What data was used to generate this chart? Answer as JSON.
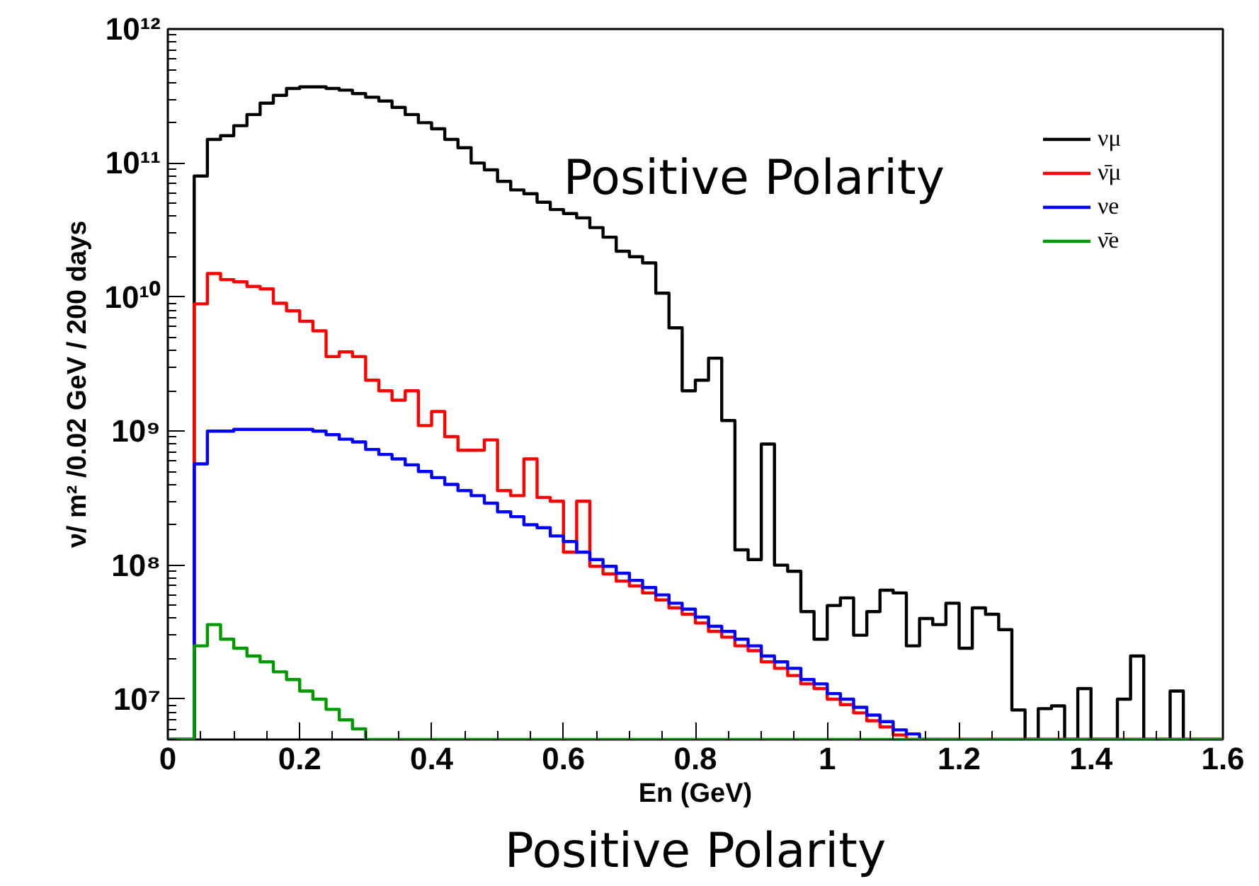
{
  "chart_data": {
    "type": "histogram",
    "xlabel": "En (GeV)",
    "ylabel": "ν/ m² /0.02 GeV / 200 days",
    "annotations": [
      "Positive Polarity",
      "Positive Polarity"
    ],
    "log": "y",
    "grid": false,
    "legend": "top right",
    "xlim": [
      0,
      1.6
    ],
    "xticks": [
      0,
      0.2,
      0.4,
      0.6,
      0.8,
      1,
      1.2,
      1.4,
      1.6
    ],
    "ylim": [
      5000000.0,
      1000000000000.0
    ],
    "yticks": [
      {
        "value": 10000000.0,
        "label": "10⁷"
      },
      {
        "value": 100000000.0,
        "label": "10⁸"
      },
      {
        "value": 1000000000.0,
        "label": "10⁹"
      },
      {
        "value": 10000000000.0,
        "label": "10¹⁰"
      },
      {
        "value": 100000000000.0,
        "label": "10¹¹"
      },
      {
        "value": 1000000000000.0,
        "label": "10¹²"
      }
    ],
    "bins": [
      0,
      0.02,
      0.04,
      0.06,
      0.08,
      0.1,
      0.12,
      0.14,
      0.16,
      0.18,
      0.2,
      0.22,
      0.24,
      0.26,
      0.28,
      0.3,
      0.32,
      0.34,
      0.36,
      0.38,
      0.4,
      0.42,
      0.44,
      0.46,
      0.48,
      0.5,
      0.52,
      0.54,
      0.56,
      0.58,
      0.6,
      0.62,
      0.64,
      0.66,
      0.68,
      0.7,
      0.72,
      0.74,
      0.76,
      0.78,
      0.8,
      0.82,
      0.84,
      0.86,
      0.88,
      0.9,
      0.92,
      0.94,
      0.96,
      0.98,
      1,
      1.02,
      1.04,
      1.06,
      1.08,
      1.1,
      1.12,
      1.14,
      1.16,
      1.18,
      1.2,
      1.22,
      1.24,
      1.26,
      1.28,
      1.3,
      1.32,
      1.34,
      1.36,
      1.38,
      1.4,
      1.42,
      1.44,
      1.46,
      1.48,
      1.5,
      1.52,
      1.54,
      1.56,
      1.58,
      1.6
    ],
    "series": [
      {
        "name": "νμ",
        "color": "#000000",
        "values": [
          null,
          null,
          80000000000.0,
          150000000000.0,
          160000000000.0,
          190000000000.0,
          230000000000.0,
          280000000000.0,
          320000000000.0,
          360000000000.0,
          370000000000.0,
          370000000000.0,
          360000000000.0,
          350000000000.0,
          330000000000.0,
          310000000000.0,
          290000000000.0,
          260000000000.0,
          230000000000.0,
          200000000000.0,
          180000000000.0,
          150000000000.0,
          130000000000.0,
          100000000000.0,
          89000000000.0,
          73000000000.0,
          63000000000.0,
          59000000000.0,
          51000000000.0,
          45000000000.0,
          42000000000.0,
          39000000000.0,
          33000000000.0,
          28000000000.0,
          22000000000.0,
          20000000000.0,
          18000000000.0,
          10700000000.0,
          5900000000.0,
          2000000000.0,
          2400000000.0,
          3500000000.0,
          1200000000.0,
          130000000.0,
          110000000.0,
          800000000.0,
          100000000.0,
          90000000.0,
          45000000.0,
          28000000.0,
          50000000.0,
          57000000.0,
          30000000.0,
          45000000.0,
          65000000.0,
          62000000.0,
          25000000.0,
          40000000.0,
          36000000.0,
          52000000.0,
          24000000.0,
          48000000.0,
          43000000.0,
          33000000.0,
          8300000.0,
          null,
          8500000.0,
          8900000.0,
          null,
          12000000.0,
          null,
          null,
          10000000.0,
          21000000.0,
          null,
          null,
          11500000.0,
          null,
          null,
          null
        ]
      },
      {
        "name": "ν̄μ",
        "color": "#ff0000",
        "values": [
          null,
          null,
          8900000000.0,
          15000000000.0,
          13500000000.0,
          13000000000.0,
          12000000000.0,
          11500000000.0,
          9000000000.0,
          7900000000.0,
          6600000000.0,
          5600000000.0,
          3600000000.0,
          3900000000.0,
          3600000000.0,
          2400000000.0,
          2000000000.0,
          1700000000.0,
          2000000000.0,
          1100000000.0,
          1400000000.0,
          910000000.0,
          720000000.0,
          720000000.0,
          860000000.0,
          360000000.0,
          330000000.0,
          620000000.0,
          320000000.0,
          300000000.0,
          125000000.0,
          300000000.0,
          98000000.0,
          86000000.0,
          76000000.0,
          70000000.0,
          62000000.0,
          55000000.0,
          48000000.0,
          43000000.0,
          37000000.0,
          32000000.0,
          29000000.0,
          25000000.0,
          23000000.0,
          19000000.0,
          17000000.0,
          15000000.0,
          13000000.0,
          12000000.0,
          10000000.0,
          9100000.0,
          7900000.0,
          6900000.0,
          6200000.0,
          5400000.0,
          null,
          null,
          null,
          null,
          null,
          null,
          null,
          null,
          null,
          null,
          null,
          null,
          null,
          null,
          null,
          null,
          null,
          null,
          null,
          null,
          null,
          null,
          null,
          null
        ]
      },
      {
        "name": "νe",
        "color": "#0000ff",
        "values": [
          null,
          null,
          570000000.0,
          1000000000.0,
          1000000000.0,
          1030000000.0,
          1030000000.0,
          1030000000.0,
          1030000000.0,
          1030000000.0,
          1030000000.0,
          1000000000.0,
          940000000.0,
          870000000.0,
          830000000.0,
          730000000.0,
          670000000.0,
          620000000.0,
          560000000.0,
          500000000.0,
          450000000.0,
          400000000.0,
          360000000.0,
          330000000.0,
          290000000.0,
          250000000.0,
          230000000.0,
          200000000.0,
          190000000.0,
          165000000.0,
          150000000.0,
          125000000.0,
          110000000.0,
          98000000.0,
          87000000.0,
          77000000.0,
          68000000.0,
          60000000.0,
          52000000.0,
          47000000.0,
          41000000.0,
          35000000.0,
          32000000.0,
          28000000.0,
          25000000.0,
          21000000.0,
          19000000.0,
          17000000.0,
          14000000.0,
          13000000.0,
          11000000.0,
          10000000.0,
          8700000.0,
          7600000.0,
          6800000.0,
          5900000.0,
          5500000.0,
          null,
          null,
          null,
          null,
          null,
          null,
          null,
          null,
          null,
          null,
          null,
          null,
          null,
          null,
          null,
          null,
          null,
          null,
          null,
          null,
          null,
          null,
          null
        ]
      },
      {
        "name": "ν̄e",
        "color": "#009a00",
        "values": [
          null,
          null,
          25000000.0,
          36000000.0,
          28000000.0,
          24000000.0,
          21000000.0,
          19000000.0,
          16000000.0,
          14000000.0,
          11500000.0,
          10000000.0,
          8400000.0,
          7000000.0,
          6000000.0,
          null,
          null,
          null,
          null,
          null,
          null,
          null,
          null,
          null,
          null,
          null,
          null,
          null,
          null,
          null,
          null,
          null,
          null,
          null,
          null,
          null,
          null,
          null,
          null,
          null,
          null,
          null,
          null,
          null,
          null,
          null,
          null,
          null,
          null,
          null,
          null,
          null,
          null,
          null,
          null,
          null,
          null,
          null,
          null,
          null,
          null,
          null,
          null,
          null,
          null,
          null,
          null,
          null,
          null,
          null,
          null,
          null,
          null,
          null,
          null,
          null,
          null,
          null,
          null,
          null
        ]
      }
    ]
  }
}
